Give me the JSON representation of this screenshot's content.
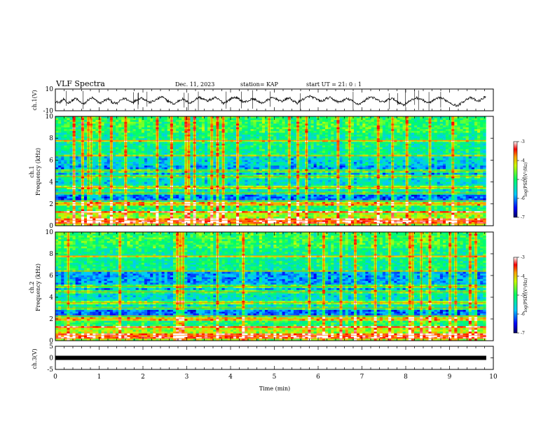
{
  "header": {
    "title": "VLF Spectra",
    "date": "Dec. 11, 2023",
    "station": "station= KAP",
    "start": "start  UT =   21: 0  : 1"
  },
  "chart_data": [
    {
      "type": "line",
      "panel": "ch1-waveform",
      "ylabel": "ch.1(V)",
      "ylim": [
        -10,
        10
      ],
      "yticks": [
        "10",
        "-10"
      ],
      "xlim": [
        0,
        9.83
      ],
      "series": [
        {
          "values": [
            -1.5,
            -2.5,
            0.5,
            -3,
            -1,
            1.5,
            -2,
            -4,
            0,
            2,
            -1,
            -3,
            -0.5,
            1,
            -2.5,
            -3.5,
            0,
            1.5,
            -1,
            -2,
            0.5,
            2,
            0,
            -2.5,
            -1,
            1,
            3,
            0,
            -2,
            -4,
            -1,
            1,
            -1.5,
            -3,
            0,
            2.5,
            1,
            -1,
            0.5,
            2,
            0,
            -3,
            -1,
            1.5,
            2.5,
            0,
            -2,
            -1,
            1,
            0,
            -3,
            -2,
            0.5,
            2,
            1,
            -1.5,
            0,
            2,
            -1,
            -3,
            0,
            1.5,
            3.5,
            2,
            0,
            -1.5,
            1,
            2,
            0,
            -2,
            -1,
            1,
            0,
            -2.5,
            -4,
            -2,
            1,
            3,
            1,
            -1,
            -2,
            0,
            1.5,
            -0.5,
            -3,
            -4.5,
            -2,
            0,
            2,
            1,
            -1,
            -3,
            -1,
            1,
            2,
            0,
            -2,
            -4,
            -5.5,
            -3,
            0,
            2,
            1,
            -1.5,
            0.5,
            3.5
          ]
        }
      ]
    },
    {
      "type": "heatmap",
      "panel": "ch1-spectrogram",
      "ylabel": "ch.1\nFrequency (kHz)",
      "ylim": [
        0,
        10
      ],
      "yticks": [
        "0",
        "2",
        "4",
        "6",
        "8",
        "10"
      ],
      "colorbar": {
        "label": "log(PSD)(V²/Hz)",
        "ticks": [
          "-3",
          "-4",
          "-5",
          "-6",
          "-7"
        ],
        "range": [
          -7,
          -3
        ]
      }
    },
    {
      "type": "heatmap",
      "panel": "ch2-spectrogram",
      "ylabel": "ch.2\nFrequency (kHz)",
      "ylim": [
        0,
        10
      ],
      "yticks": [
        "0",
        "2",
        "4",
        "6",
        "8",
        "10"
      ],
      "colorbar": {
        "label": "log(PSD)(V²/Hz)",
        "ticks": [
          "-3",
          "-4",
          "-5",
          "-6",
          "-7"
        ],
        "range": [
          -7,
          -3
        ]
      }
    },
    {
      "type": "line",
      "panel": "ch3-waveform",
      "ylabel": "ch.3(V)",
      "ylim": [
        -5,
        5
      ],
      "yticks": [
        "5",
        "0",
        "-5"
      ],
      "series": [
        {
          "values": [
            0,
            0
          ]
        }
      ]
    }
  ],
  "xaxis": {
    "label": "Time  (min)",
    "ticks": [
      "0",
      "1",
      "2",
      "3",
      "4",
      "5",
      "6",
      "7",
      "8",
      "9",
      "10"
    ],
    "range": [
      0,
      10
    ]
  }
}
